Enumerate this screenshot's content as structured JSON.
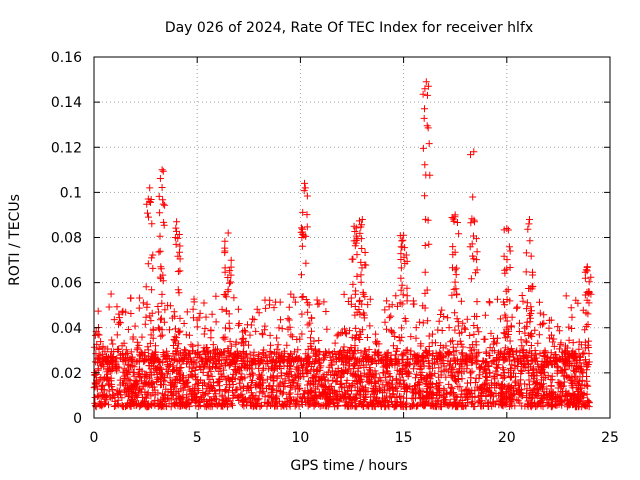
{
  "chart_data": {
    "type": "scatter",
    "title": "Day 026 of 2024, Rate Of TEC Index for receiver hlfx",
    "xlabel": "GPS time / hours",
    "ylabel": "ROTI / TECUs",
    "xlim": [
      0,
      25
    ],
    "ylim": [
      0,
      0.16
    ],
    "xticks": [
      0,
      5,
      10,
      15,
      20,
      25
    ],
    "xtick_labels": [
      "0",
      "5",
      "10",
      "15",
      "20",
      "25"
    ],
    "yticks": [
      0,
      0.02,
      0.04,
      0.06,
      0.08,
      0.1,
      0.12,
      0.14,
      0.16
    ],
    "ytick_labels": [
      "0",
      "0.02",
      "0.04",
      "0.06",
      "0.08",
      "0.1",
      "0.12",
      "0.14",
      "0.16"
    ],
    "grid": true,
    "marker": "+",
    "series_color": "#ff0000",
    "x_range_hours": [
      0,
      24
    ],
    "dense_band_roti": [
      0.005,
      0.03
    ],
    "peaks": [
      {
        "x": 2.7,
        "y": 0.102
      },
      {
        "x": 3.3,
        "y": 0.11
      },
      {
        "x": 4.0,
        "y": 0.087
      },
      {
        "x": 6.5,
        "y": 0.082
      },
      {
        "x": 10.2,
        "y": 0.104
      },
      {
        "x": 12.6,
        "y": 0.085
      },
      {
        "x": 13.0,
        "y": 0.088
      },
      {
        "x": 15.0,
        "y": 0.081
      },
      {
        "x": 16.1,
        "y": 0.149
      },
      {
        "x": 17.5,
        "y": 0.09
      },
      {
        "x": 18.4,
        "y": 0.118
      },
      {
        "x": 20.0,
        "y": 0.084
      },
      {
        "x": 21.1,
        "y": 0.088
      },
      {
        "x": 23.9,
        "y": 0.067
      }
    ]
  }
}
